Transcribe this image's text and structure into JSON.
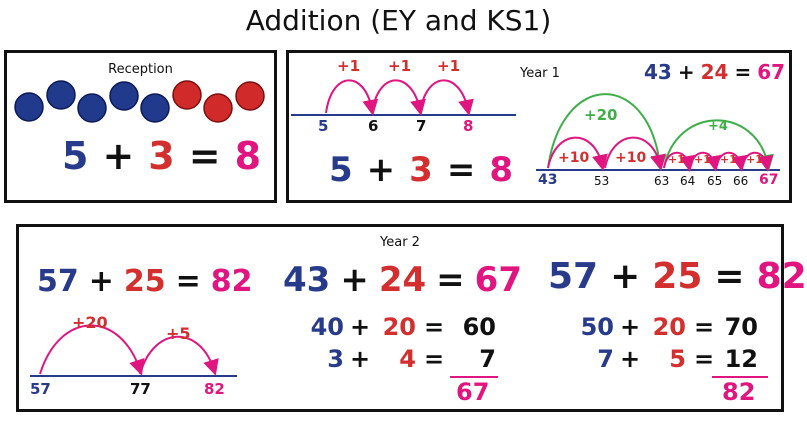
{
  "title": "Addition (EY and KS1)",
  "reception": {
    "label": "Reception",
    "counters": {
      "blue": 5,
      "red": 3
    },
    "equation": {
      "a": "5",
      "op": "+",
      "b": "3",
      "eq": "=",
      "result": "8"
    }
  },
  "year1": {
    "label": "Year 1",
    "line1": {
      "jumps": [
        "+1",
        "+1",
        "+1"
      ],
      "ticks": [
        "5",
        "6",
        "7",
        "8"
      ]
    },
    "equation": {
      "a": "5",
      "op": "+",
      "b": "3",
      "eq": "=",
      "result": "8"
    },
    "top_equation": {
      "a": "43",
      "op": "+",
      "b": "24",
      "eq": "=",
      "result": "67"
    },
    "line2": {
      "tens_jumps": [
        "+10",
        "+10"
      ],
      "tens_total": "+20",
      "ones_jumps": [
        "+1",
        "+1",
        "+1",
        "+1"
      ],
      "ones_total": "+4",
      "ticks": [
        "43",
        "53",
        "63",
        "64",
        "65",
        "66",
        "67"
      ]
    }
  },
  "year2": {
    "label": "Year 2",
    "col1": {
      "equation": {
        "a": "57",
        "op": "+",
        "b": "25",
        "eq": "=",
        "result": "82"
      },
      "jumps": [
        "+20",
        "+5"
      ],
      "ticks": [
        "57",
        "77",
        "82"
      ]
    },
    "col2": {
      "equation": {
        "a": "43",
        "op": "+",
        "b": "24",
        "eq": "=",
        "result": "67"
      },
      "rows": [
        {
          "a": "40",
          "op": "+",
          "b": "20",
          "eq": "=",
          "r": "60"
        },
        {
          "a": "3",
          "op": "+",
          "b": "4",
          "eq": "=",
          "r": "7"
        }
      ],
      "total": "67"
    },
    "col3": {
      "equation": {
        "a": "57",
        "op": "+",
        "b": "25",
        "eq": "=",
        "result": "82"
      },
      "rows": [
        {
          "a": "50",
          "op": "+",
          "b": "20",
          "eq": "=",
          "r": "70"
        },
        {
          "a": "7",
          "op": "+",
          "b": "5",
          "eq": "=",
          "r": "12"
        }
      ],
      "total": "82"
    }
  },
  "colors": {
    "blue": "#283b8a",
    "red": "#d32f2f",
    "pink": "#e0157f",
    "green": "#3fae49",
    "line": "#283b8a"
  }
}
